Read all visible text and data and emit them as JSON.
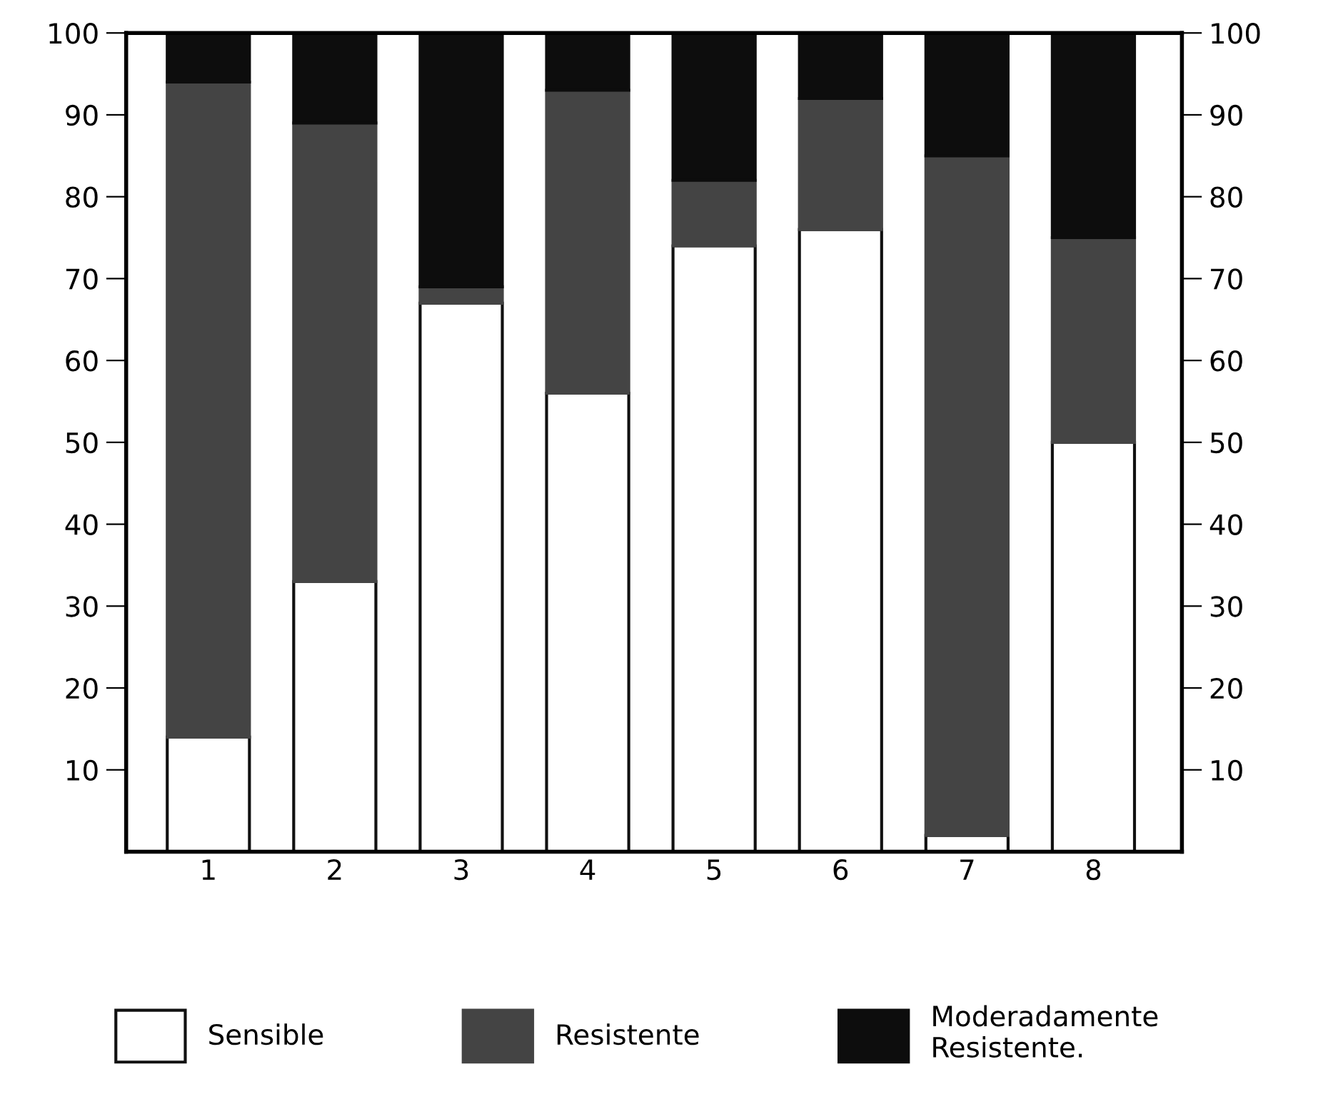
{
  "chart_data": {
    "type": "bar",
    "stacked": true,
    "categories": [
      "1",
      "2",
      "3",
      "4",
      "5",
      "6",
      "7",
      "8"
    ],
    "series": [
      {
        "name": "Sensible",
        "color": "#ffffff",
        "values": [
          14,
          33,
          67,
          56,
          74,
          76,
          2,
          50
        ]
      },
      {
        "name": "Resistente",
        "color": "#444444",
        "values": [
          80,
          56,
          2,
          37,
          8,
          16,
          83,
          25
        ]
      },
      {
        "name": "Moderadamente\nResistente.",
        "color": "#0d0d0d",
        "values": [
          6,
          11,
          31,
          7,
          18,
          8,
          15,
          25
        ]
      }
    ],
    "ylim": [
      0,
      100
    ],
    "yticks": [
      10,
      20,
      30,
      40,
      50,
      60,
      70,
      80,
      90,
      100
    ],
    "y2lim": [
      0,
      100
    ],
    "y2ticks": [
      10,
      20,
      30,
      40,
      50,
      60,
      70,
      80,
      90,
      100
    ],
    "grid": false,
    "legend": "bottom"
  }
}
